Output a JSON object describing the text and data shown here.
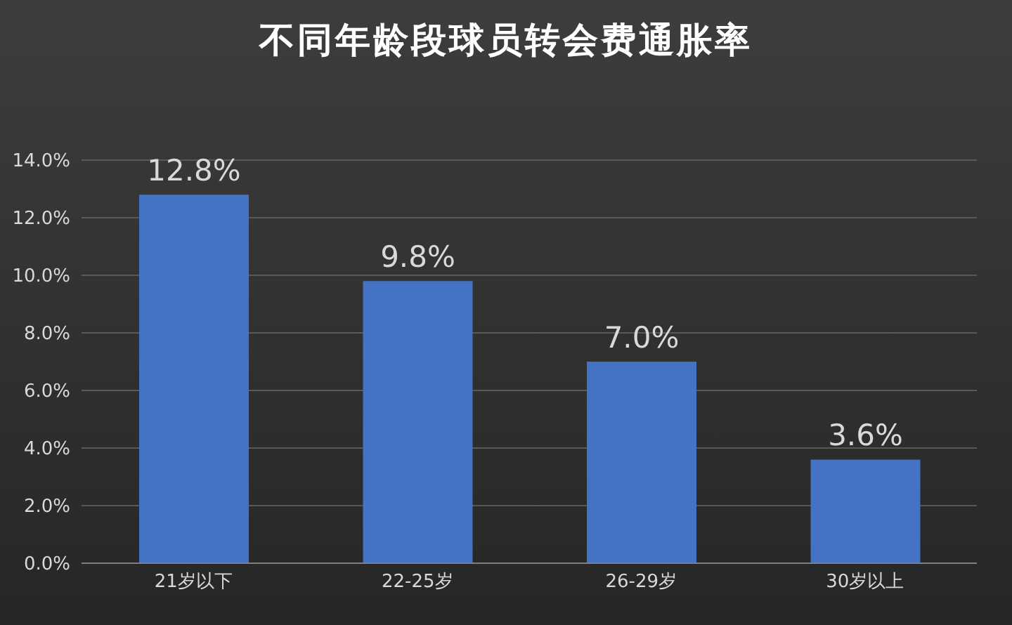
{
  "chart_data": {
    "type": "bar",
    "title": "不同年龄段球员转会费通胀率",
    "categories": [
      "21岁以下",
      "22-25岁",
      "26-29岁",
      "30岁以上"
    ],
    "values": [
      12.8,
      9.8,
      7.0,
      3.6
    ],
    "value_labels": [
      "12.8%",
      "9.8%",
      "7.0%",
      "3.6%"
    ],
    "color": "#4472c4",
    "ylim": [
      0,
      14
    ],
    "yticks": [
      {
        "value": 0,
        "label": "0.0%"
      },
      {
        "value": 2,
        "label": "2.0%"
      },
      {
        "value": 4,
        "label": "4.0%"
      },
      {
        "value": 6,
        "label": "6.0%"
      },
      {
        "value": 8,
        "label": "8.0%"
      },
      {
        "value": 10,
        "label": "10.0%"
      },
      {
        "value": 12,
        "label": "12.0%"
      },
      {
        "value": 14,
        "label": "14.0%"
      }
    ],
    "grid": "y",
    "legend": false
  }
}
